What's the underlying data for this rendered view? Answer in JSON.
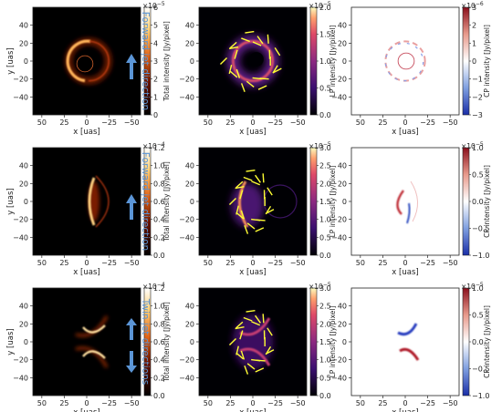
{
  "colors": {
    "jet_annotation": "#5b95d6",
    "evpa_ticks": "#ffff33",
    "afmhot_peak": "#ffffff",
    "cp_positive": "#b2182b",
    "cp_negative": "#2140a8"
  },
  "chart_data": [
    {
      "type": "heatmap",
      "row": 0,
      "quantity": "total_intensity",
      "cmap": "afmhot",
      "xlabel": "x [uas]",
      "ylabel": "y [uas]",
      "xticks": [
        "50",
        "25",
        "0",
        "−25",
        "−50"
      ],
      "yticks": [
        "40",
        "20",
        "0",
        "−20",
        "−40"
      ],
      "colorbar": {
        "label": "Total intensity [Jy/pixel]",
        "multiplier": "×10",
        "multiplier_exp": "−5",
        "ticks": [
          "0",
          "1",
          "2",
          "3",
          "4",
          "5",
          "6"
        ],
        "range": [
          0,
          6
        ]
      },
      "annotation": "Forward jet direction",
      "morphology": "ring"
    },
    {
      "type": "heatmap",
      "row": 0,
      "quantity": "linear_polarization",
      "cmap": "magma",
      "xlabel": "x [uas]",
      "xticks": [
        "50",
        "25",
        "0",
        "−25",
        "−50"
      ],
      "yticks": [
        "40",
        "20",
        "0",
        "−20",
        "−40"
      ],
      "colorbar": {
        "label": "LP intensity [Jy/pixel]",
        "multiplier": "×10",
        "multiplier_exp": "−5",
        "ticks": [
          "0.0",
          "0.5",
          "1.0",
          "1.5",
          "2.0"
        ],
        "range": [
          0,
          2
        ]
      },
      "morphology": "ring",
      "evpa_overlay": true
    },
    {
      "type": "heatmap",
      "row": 0,
      "quantity": "circular_polarization",
      "cmap": "RdBu_r",
      "xlabel": "x [uas]",
      "xticks": [
        "50",
        "25",
        "0",
        "−25",
        "−50"
      ],
      "yticks": [
        "40",
        "20",
        "0",
        "−20",
        "−40"
      ],
      "colorbar": {
        "label": "CP intensity [Jy/pixel]",
        "multiplier": "×10",
        "multiplier_exp": "−6",
        "ticks": [
          "3",
          "2",
          "1",
          "0",
          "−1",
          "−2",
          "−3"
        ],
        "range": [
          -3,
          3
        ]
      },
      "morphology": "ring"
    },
    {
      "type": "heatmap",
      "row": 1,
      "quantity": "total_intensity",
      "cmap": "afmhot",
      "xlabel": "x [uas]",
      "ylabel": "y [uas]",
      "xticks": [
        "50",
        "25",
        "0",
        "−25",
        "−50"
      ],
      "yticks": [
        "40",
        "20",
        "0",
        "−20",
        "−40"
      ],
      "colorbar": {
        "label": "Total intensity [Jy/pixel]",
        "multiplier": "×10",
        "multiplier_exp": "−4",
        "ticks": [
          "0.0",
          "0.2",
          "0.4",
          "0.6",
          "0.8",
          "1.0",
          "1.2"
        ],
        "range": [
          0,
          1.2
        ]
      },
      "annotation": "Forward jet direction",
      "morphology": "crescent"
    },
    {
      "type": "heatmap",
      "row": 1,
      "quantity": "linear_polarization",
      "cmap": "magma",
      "xlabel": "x [uas]",
      "xticks": [
        "50",
        "25",
        "0",
        "−25",
        "−50"
      ],
      "yticks": [
        "40",
        "20",
        "0",
        "−20",
        "−40"
      ],
      "colorbar": {
        "label": "LP intensity [Jy/pixel]",
        "multiplier": "×10",
        "multiplier_exp": "−5",
        "ticks": [
          "0.0",
          "0.5",
          "1.0",
          "1.5",
          "2.0",
          "2.5",
          "3.0"
        ],
        "range": [
          0,
          3
        ]
      },
      "morphology": "crescent",
      "evpa_overlay": true
    },
    {
      "type": "heatmap",
      "row": 1,
      "quantity": "circular_polarization",
      "cmap": "RdBu_r",
      "xlabel": "x [uas]",
      "xticks": [
        "50",
        "25",
        "0",
        "−25",
        "−50"
      ],
      "yticks": [
        "40",
        "20",
        "0",
        "−20",
        "−40"
      ],
      "colorbar": {
        "label": "CP intensity [Jy/pixel]",
        "multiplier": "×10",
        "multiplier_exp": "−5",
        "ticks": [
          "1.0",
          "0.5",
          "0.0",
          "−0.5",
          "−1.0"
        ],
        "range": [
          -1,
          1
        ]
      },
      "morphology": "crescent"
    },
    {
      "type": "heatmap",
      "row": 2,
      "quantity": "total_intensity",
      "cmap": "afmhot",
      "xlabel": "x [uas]",
      "ylabel": "y [uas]",
      "xticks": [
        "50",
        "25",
        "0",
        "−25",
        "−50"
      ],
      "yticks": [
        "40",
        "20",
        "0",
        "−20",
        "−40"
      ],
      "colorbar": {
        "label": "Total intensity [Jy/pixel]",
        "multiplier": "×10",
        "multiplier_exp": "−4",
        "ticks": [
          "0.0",
          "0.2",
          "0.4",
          "0.6",
          "0.8",
          "1.0",
          "1.2"
        ],
        "range": [
          0,
          1.2
        ]
      },
      "annotation": "Twin jet directions",
      "morphology": "bowtie"
    },
    {
      "type": "heatmap",
      "row": 2,
      "quantity": "linear_polarization",
      "cmap": "magma",
      "xlabel": "x [uas]",
      "xticks": [
        "50",
        "25",
        "0",
        "−25",
        "−50"
      ],
      "yticks": [
        "40",
        "20",
        "0",
        "−20",
        "−40"
      ],
      "colorbar": {
        "label": "LP intensity [Jy/pixel]",
        "multiplier": "×10",
        "multiplier_exp": "−5",
        "ticks": [
          "0.0",
          "0.5",
          "1.0",
          "1.5",
          "2.0",
          "2.5",
          "3.0"
        ],
        "range": [
          0,
          3
        ]
      },
      "morphology": "bowtie",
      "evpa_overlay": true
    },
    {
      "type": "heatmap",
      "row": 2,
      "quantity": "circular_polarization",
      "cmap": "RdBu_r",
      "xlabel": "x [uas]",
      "xticks": [
        "50",
        "25",
        "0",
        "−25",
        "−50"
      ],
      "yticks": [
        "40",
        "20",
        "0",
        "−20",
        "−40"
      ],
      "colorbar": {
        "label": "CP intensity [Jy/pixel]",
        "multiplier": "×10",
        "multiplier_exp": "−5",
        "ticks": [
          "1.0",
          "0.5",
          "0.0",
          "−0.5",
          "−1.0"
        ],
        "range": [
          -1,
          1
        ]
      },
      "morphology": "bowtie"
    }
  ]
}
